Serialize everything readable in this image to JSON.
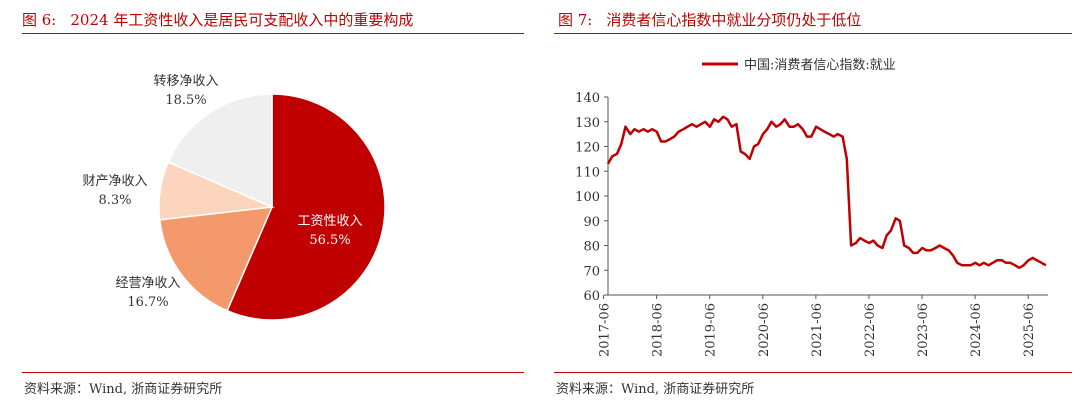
{
  "left": {
    "figure_label": "图 6:",
    "title": "2024 年工资性收入是居民可支配收入中的重要构成",
    "source": "资料来源：Wind, 浙商证券研究所"
  },
  "right": {
    "figure_label": "图 7:",
    "title": "消费者信心指数中就业分项仍处于低位",
    "source": "资料来源：Wind, 浙商证券研究所"
  },
  "chart_data": [
    {
      "type": "pie",
      "title": "",
      "slices": [
        {
          "label": "工资性收入",
          "value": 56.5,
          "display": "56.5%",
          "color": "#c00000"
        },
        {
          "label": "经营净收入",
          "value": 16.7,
          "display": "16.7%",
          "color": "#f4996b"
        },
        {
          "label": "财产净收入",
          "value": 8.3,
          "display": "8.3%",
          "color": "#fbd5bd"
        },
        {
          "label": "转移净收入",
          "value": 18.5,
          "display": "18.5%",
          "color": "#efefef"
        }
      ]
    },
    {
      "type": "line",
      "legend": {
        "label": "中国:消费者信心指数:就业",
        "position": "top"
      },
      "color": "#c00000",
      "ylim": [
        60,
        140
      ],
      "yticks": [
        60,
        70,
        80,
        90,
        100,
        110,
        120,
        130,
        140
      ],
      "xlim": [
        2017.5,
        2025.79
      ],
      "xticks": [
        "2017-06",
        "2018-06",
        "2019-06",
        "2020-06",
        "2021-06",
        "2022-06",
        "2023-06",
        "2024-06",
        "2025-06"
      ],
      "series": [
        {
          "name": "中国:消费者信心指数:就业",
          "x": [
            2017.5,
            2017.58,
            2017.67,
            2017.75,
            2017.83,
            2017.92,
            2018.0,
            2018.08,
            2018.17,
            2018.25,
            2018.33,
            2018.42,
            2018.5,
            2018.58,
            2018.67,
            2018.75,
            2018.83,
            2018.92,
            2019.0,
            2019.08,
            2019.17,
            2019.25,
            2019.33,
            2019.42,
            2019.5,
            2019.58,
            2019.67,
            2019.75,
            2019.83,
            2019.92,
            2020.0,
            2020.08,
            2020.17,
            2020.25,
            2020.33,
            2020.42,
            2020.5,
            2020.58,
            2020.67,
            2020.75,
            2020.83,
            2020.92,
            2021.0,
            2021.08,
            2021.17,
            2021.25,
            2021.33,
            2021.42,
            2021.5,
            2021.58,
            2021.67,
            2021.75,
            2021.83,
            2021.92,
            2022.0,
            2022.08,
            2022.17,
            2022.25,
            2022.33,
            2022.42,
            2022.5,
            2022.58,
            2022.67,
            2022.75,
            2022.83,
            2022.92,
            2023.0,
            2023.08,
            2023.17,
            2023.25,
            2023.33,
            2023.42,
            2023.5,
            2023.58,
            2023.67,
            2023.75,
            2023.83,
            2023.92,
            2024.0,
            2024.08,
            2024.17,
            2024.25,
            2024.33,
            2024.42,
            2024.5,
            2024.58,
            2024.67,
            2024.75,
            2024.83,
            2024.92,
            2025.0,
            2025.08,
            2025.17,
            2025.25,
            2025.33,
            2025.42,
            2025.5,
            2025.58,
            2025.67,
            2025.75
          ],
          "y": [
            113,
            116,
            117,
            121,
            128,
            125,
            127,
            126,
            127,
            126,
            127,
            126,
            122,
            122,
            123,
            124,
            126,
            127,
            128,
            129,
            128,
            129,
            130,
            128,
            131,
            130,
            132,
            131,
            128,
            129,
            118,
            117,
            115,
            120,
            121,
            125,
            127,
            130,
            128,
            129,
            131,
            128,
            128,
            129,
            127,
            124,
            124,
            128,
            127,
            126,
            125,
            124,
            125,
            124,
            115,
            80,
            81,
            83,
            82,
            81,
            82,
            80,
            79,
            84,
            86,
            91,
            90,
            80,
            79,
            77,
            77,
            79,
            78,
            78,
            79,
            80,
            79,
            78,
            76,
            73,
            72,
            72,
            72,
            73,
            72,
            73,
            72,
            73,
            74,
            74,
            73,
            73,
            72,
            71,
            72,
            74,
            75,
            74,
            73,
            72
          ]
        }
      ]
    }
  ]
}
